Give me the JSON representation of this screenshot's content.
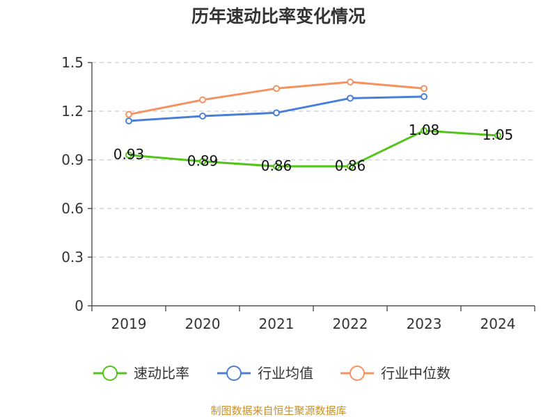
{
  "chart_data": {
    "type": "line",
    "title": "历年速动比率变化情况",
    "categories": [
      "2019",
      "2020",
      "2021",
      "2022",
      "2023",
      "2024"
    ],
    "ylim": [
      0,
      1.5
    ],
    "yticks": [
      "0",
      "0.3",
      "0.6",
      "0.9",
      "1.2",
      "1.5"
    ],
    "grid": true,
    "legend_position": "bottom",
    "series": [
      {
        "name": "速动比率",
        "color": "#52c41a",
        "values": [
          0.93,
          0.89,
          0.86,
          0.86,
          1.08,
          1.05
        ],
        "labels": [
          "0.93",
          "0.89",
          "0.86",
          "0.86",
          "1.08",
          "1.05"
        ],
        "show_labels": true
      },
      {
        "name": "行业均值",
        "color": "#4a7fd6",
        "values": [
          1.14,
          1.17,
          1.19,
          1.28,
          1.29,
          null
        ],
        "show_labels": false
      },
      {
        "name": "行业中位数",
        "color": "#f59360",
        "values": [
          1.18,
          1.27,
          1.34,
          1.38,
          1.34,
          null
        ],
        "show_labels": false
      }
    ],
    "source": "制图数据来自恒生聚源数据库"
  }
}
